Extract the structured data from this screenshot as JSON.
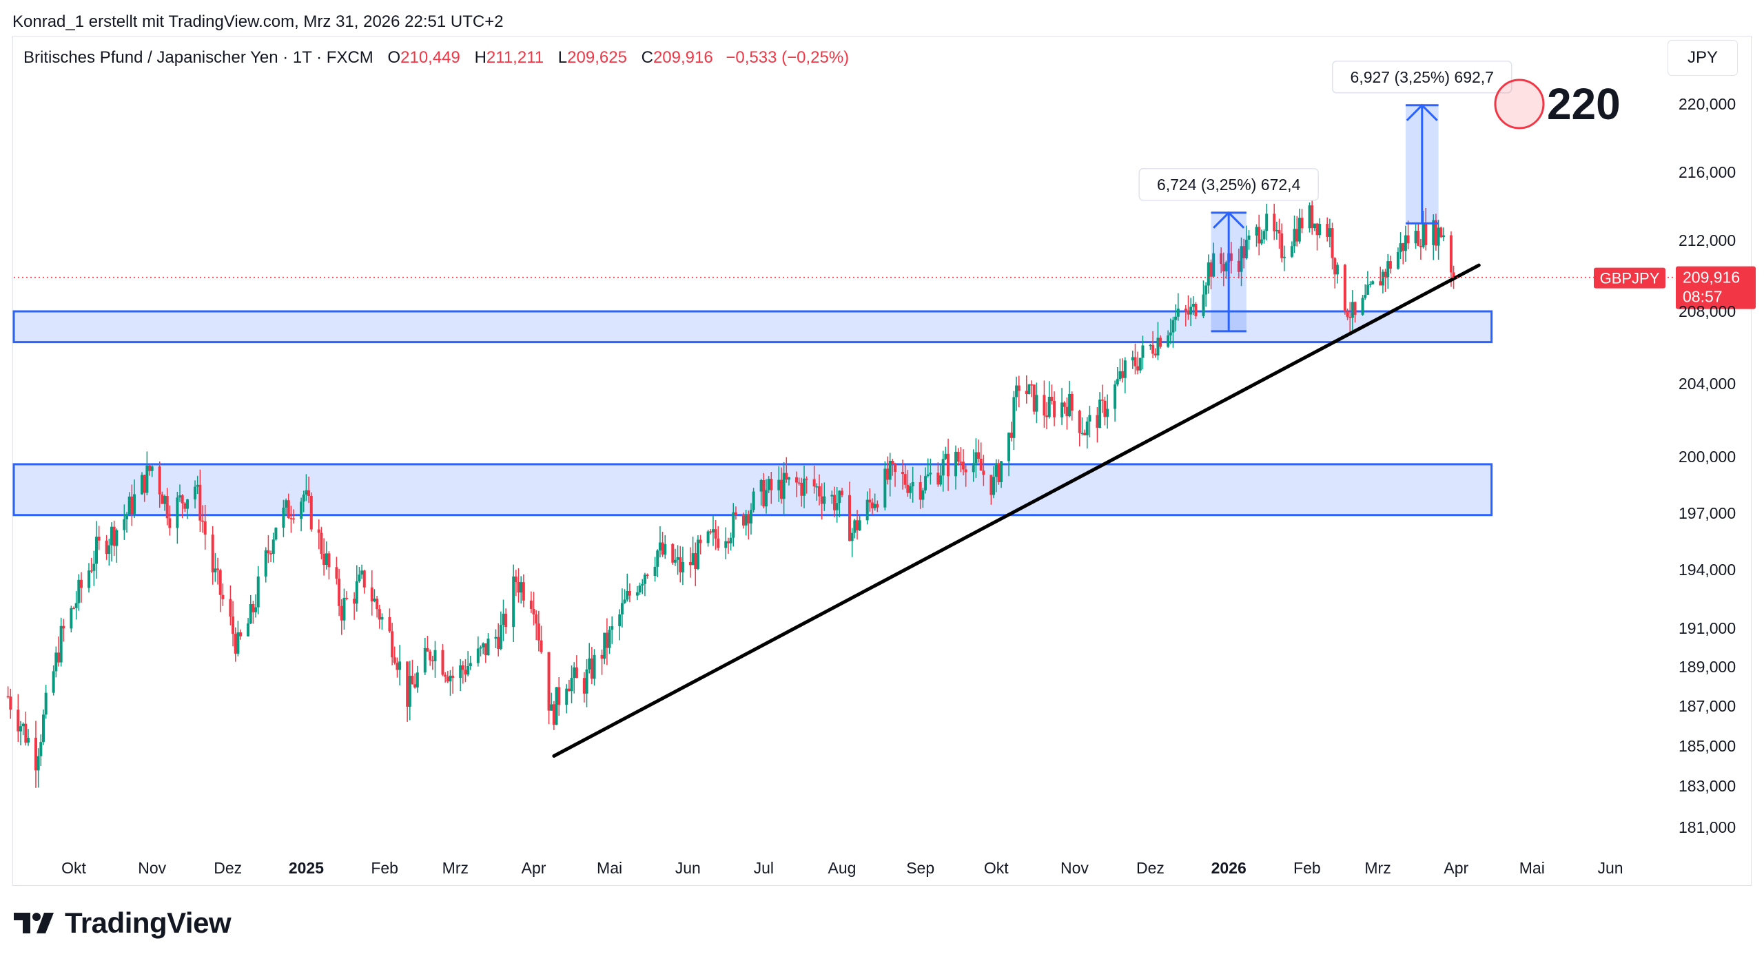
{
  "header": {
    "credit": "Konrad_1 erstellt mit TradingView.com, Mrz 31, 2026 22:51 UTC+2"
  },
  "legend": {
    "symbol": "Britisches Pfund / Japanischer Yen · 1T · FXCM",
    "open_label": "O",
    "open": "210,449",
    "high_label": "H",
    "high": "211,211",
    "low_label": "L",
    "low": "209,625",
    "close_label": "C",
    "close": "209,916",
    "change": "−0,533 (−0,25%)"
  },
  "currency_button": "JPY",
  "brand": {
    "name": "TradingView"
  },
  "colors": {
    "up": "#089981",
    "down": "#f23645",
    "zone_fill": "#d6e0ff",
    "zone_border": "#2962ff",
    "trendline": "#000000",
    "target_circle": "#f23645"
  },
  "chart_data": {
    "type": "candlestick",
    "symbol": "GBPJPY",
    "y_axis": {
      "ticks": [
        {
          "label": "220,000",
          "value": 220000
        },
        {
          "label": "216,000",
          "value": 216000
        },
        {
          "label": "212,000",
          "value": 212000
        },
        {
          "label": "208,000",
          "value": 208000
        },
        {
          "label": "204,000",
          "value": 204000
        },
        {
          "label": "200,000",
          "value": 200000
        },
        {
          "label": "197,000",
          "value": 197000
        },
        {
          "label": "194,000",
          "value": 194000
        },
        {
          "label": "191,000",
          "value": 191000
        },
        {
          "label": "189,000",
          "value": 189000
        },
        {
          "label": "187,000",
          "value": 187000
        },
        {
          "label": "185,000",
          "value": 185000
        },
        {
          "label": "183,000",
          "value": 183000
        },
        {
          "label": "181,000",
          "value": 181000
        }
      ]
    },
    "x_axis": {
      "ticks": [
        {
          "label": "Okt",
          "bold": false,
          "date": "2024-10-01"
        },
        {
          "label": "Nov",
          "bold": false,
          "date": "2024-11-01"
        },
        {
          "label": "Dez",
          "bold": false,
          "date": "2024-12-01"
        },
        {
          "label": "2025",
          "bold": true,
          "date": "2025-01-01"
        },
        {
          "label": "Feb",
          "bold": false,
          "date": "2025-02-01"
        },
        {
          "label": "Mrz",
          "bold": false,
          "date": "2025-03-01"
        },
        {
          "label": "Apr",
          "bold": false,
          "date": "2025-04-01"
        },
        {
          "label": "Mai",
          "bold": false,
          "date": "2025-05-01"
        },
        {
          "label": "Jun",
          "bold": false,
          "date": "2025-06-01"
        },
        {
          "label": "Jul",
          "bold": false,
          "date": "2025-07-01"
        },
        {
          "label": "Aug",
          "bold": false,
          "date": "2025-08-01"
        },
        {
          "label": "Sep",
          "bold": false,
          "date": "2025-09-01"
        },
        {
          "label": "Okt",
          "bold": false,
          "date": "2025-10-01"
        },
        {
          "label": "Nov",
          "bold": false,
          "date": "2025-11-01"
        },
        {
          "label": "Dez",
          "bold": false,
          "date": "2025-12-01"
        },
        {
          "label": "2026",
          "bold": true,
          "date": "2026-01-01"
        },
        {
          "label": "Feb",
          "bold": false,
          "date": "2026-02-01"
        },
        {
          "label": "Mrz",
          "bold": false,
          "date": "2026-03-01"
        },
        {
          "label": "Apr",
          "bold": false,
          "date": "2026-04-01"
        },
        {
          "label": "Mai",
          "bold": false,
          "date": "2026-05-01"
        },
        {
          "label": "Jun",
          "bold": false,
          "date": "2026-06-01"
        }
      ]
    },
    "price_path": [
      [
        "2024-09-05",
        187.5
      ],
      [
        "2024-09-16",
        184.5
      ],
      [
        "2024-09-26",
        190.5
      ],
      [
        "2024-10-10",
        195.0
      ],
      [
        "2024-10-20",
        196.5
      ],
      [
        "2024-11-01",
        199.5
      ],
      [
        "2024-11-08",
        197.0
      ],
      [
        "2024-11-18",
        198.5
      ],
      [
        "2024-11-25",
        194.0
      ],
      [
        "2024-12-05",
        190.0
      ],
      [
        "2024-12-10",
        191.5
      ],
      [
        "2024-12-20",
        196.5
      ],
      [
        "2024-12-31",
        198.0
      ],
      [
        "2025-01-10",
        194.0
      ],
      [
        "2025-01-15",
        192.0
      ],
      [
        "2025-01-24",
        193.5
      ],
      [
        "2025-02-05",
        190.0
      ],
      [
        "2025-02-10",
        187.5
      ],
      [
        "2025-02-20",
        190.0
      ],
      [
        "2025-02-28",
        188.5
      ],
      [
        "2025-03-10",
        189.5
      ],
      [
        "2025-03-20",
        191.0
      ],
      [
        "2025-03-25",
        193.5
      ],
      [
        "2025-04-01",
        192.5
      ],
      [
        "2025-04-08",
        186.5
      ],
      [
        "2025-04-14",
        188.5
      ],
      [
        "2025-04-20",
        188.0
      ],
      [
        "2025-05-01",
        190.5
      ],
      [
        "2025-05-10",
        193.0
      ],
      [
        "2025-05-20",
        195.0
      ],
      [
        "2025-05-30",
        194.0
      ],
      [
        "2025-06-10",
        195.5
      ],
      [
        "2025-06-20",
        196.5
      ],
      [
        "2025-06-30",
        198.0
      ],
      [
        "2025-07-10",
        198.5
      ],
      [
        "2025-07-20",
        198.5
      ],
      [
        "2025-07-31",
        197.5
      ],
      [
        "2025-08-05",
        196.0
      ],
      [
        "2025-08-12",
        197.5
      ],
      [
        "2025-08-20",
        199.0
      ],
      [
        "2025-09-01",
        198.5
      ],
      [
        "2025-09-10",
        199.5
      ],
      [
        "2025-09-20",
        200.0
      ],
      [
        "2025-09-30",
        198.5
      ],
      [
        "2025-10-06",
        201.0
      ],
      [
        "2025-10-10",
        204.0
      ],
      [
        "2025-10-20",
        202.5
      ],
      [
        "2025-10-29",
        203.0
      ],
      [
        "2025-11-05",
        201.5
      ],
      [
        "2025-11-12",
        202.5
      ],
      [
        "2025-11-20",
        204.5
      ],
      [
        "2025-12-01",
        206.0
      ],
      [
        "2025-12-10",
        207.5
      ],
      [
        "2025-12-18",
        208.0
      ],
      [
        "2025-12-24",
        210.5
      ],
      [
        "2026-01-05",
        211.0
      ],
      [
        "2026-01-15",
        213.0
      ],
      [
        "2026-01-22",
        211.5
      ],
      [
        "2026-02-01",
        213.5
      ],
      [
        "2026-02-10",
        212.5
      ],
      [
        "2026-02-14",
        209.0
      ],
      [
        "2026-02-20",
        207.5
      ],
      [
        "2026-02-28",
        209.5
      ],
      [
        "2026-03-05",
        210.5
      ],
      [
        "2026-03-12",
        212.0
      ],
      [
        "2026-03-20",
        212.5
      ],
      [
        "2026-03-27",
        212.5
      ],
      [
        "2026-03-31",
        209.916
      ]
    ],
    "last_price": {
      "label": "GBPJPY",
      "value": "209,916",
      "countdown": "08:57"
    },
    "zones": [
      {
        "name": "resistance-zone",
        "from": "2024-09-05",
        "to": "2026-04-15",
        "low": 206.3,
        "high": 208.0
      },
      {
        "name": "support-zone",
        "from": "2024-09-05",
        "to": "2026-04-15",
        "low": 196.9,
        "high": 199.6
      }
    ],
    "trendline": {
      "from": [
        "2025-04-09",
        184.5
      ],
      "to": [
        "2026-04-10",
        210.6
      ]
    },
    "measures": [
      {
        "label": "6,724 (3,25%) 672,4",
        "from": "2025-12-25",
        "to": "2026-01-08",
        "start": 206.9,
        "end": 213.624
      },
      {
        "label": "6,927 (3,25%) 692,7",
        "from": "2026-03-12",
        "to": "2026-03-25",
        "start": 213.0,
        "end": 219.927
      }
    ],
    "target": {
      "label": "220",
      "value": 220.0,
      "date": "2026-04-26"
    }
  }
}
